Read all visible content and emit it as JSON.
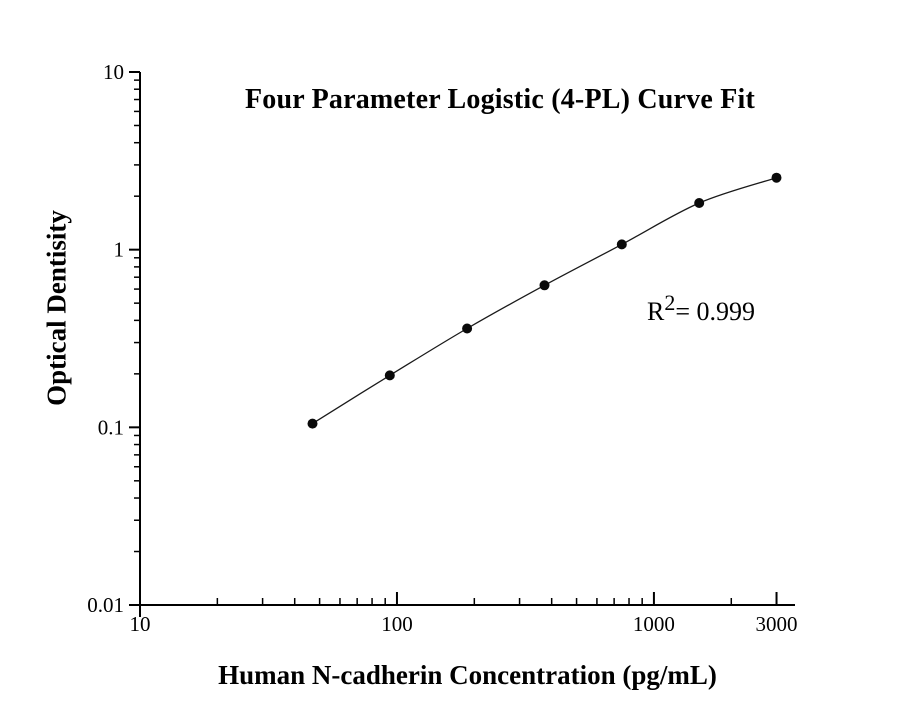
{
  "page": {
    "background": "#ffffff"
  },
  "chart_data": {
    "type": "scatter",
    "title": "Four Parameter Logistic (4-PL) Curve Fit",
    "xlabel": "Human N-cadherin Concentration (pg/mL)",
    "ylabel": "Optical Dentisity",
    "annotation": {
      "base": "R",
      "sup": "2",
      "rest": "= 0.999"
    },
    "x_scale": "log",
    "y_scale": "log",
    "xlim": [
      10,
      3540
    ],
    "ylim": [
      0.01,
      10
    ],
    "grid": false,
    "legend": "none",
    "x_ticks": {
      "major": [
        {
          "v": 10,
          "label": "10"
        },
        {
          "v": 100,
          "label": "100"
        },
        {
          "v": 1000,
          "label": "1000"
        },
        {
          "v": 3000,
          "label": "3000"
        }
      ],
      "minor": [
        20,
        30,
        40,
        50,
        60,
        70,
        80,
        90,
        200,
        300,
        400,
        500,
        600,
        700,
        800,
        900,
        2000
      ]
    },
    "y_ticks": {
      "major": [
        {
          "v": 10,
          "label": "10"
        },
        {
          "v": 1,
          "label": "1"
        },
        {
          "v": 0.1,
          "label": "0.1"
        },
        {
          "v": 0.01,
          "label": "0.01"
        }
      ],
      "minor": [
        2,
        3,
        4,
        5,
        6,
        7,
        8,
        9,
        0.2,
        0.3,
        0.4,
        0.5,
        0.6,
        0.7,
        0.8,
        0.9,
        0.02,
        0.03,
        0.04,
        0.05,
        0.06,
        0.07,
        0.08,
        0.09
      ]
    },
    "series": [
      {
        "name": "standard-curve-points",
        "x": [
          46.9,
          93.8,
          187.5,
          375,
          750,
          1500,
          3000
        ],
        "y": [
          0.105,
          0.196,
          0.36,
          0.63,
          1.07,
          1.83,
          2.54
        ]
      }
    ],
    "colors": {
      "axis": "#000000",
      "tick_text": "#000000",
      "points": "#0a0a0a",
      "curve": "#1a1a1a",
      "text": "#000000",
      "background": "#ffffff"
    }
  }
}
